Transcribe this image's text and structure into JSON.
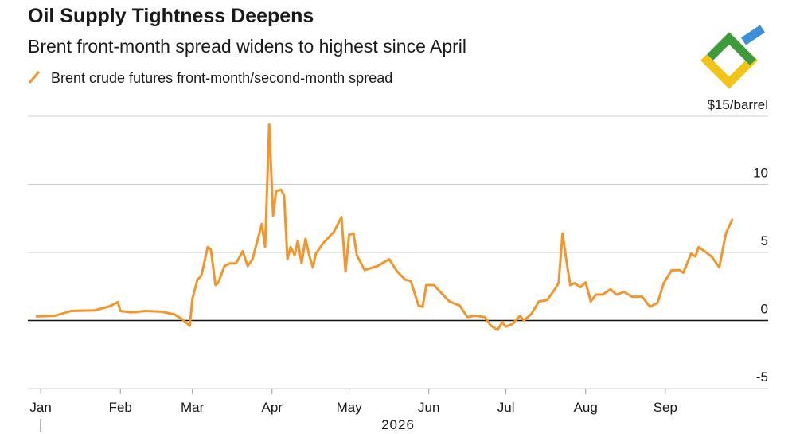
{
  "chart_data": {
    "type": "line",
    "title": "Oil Supply Tightness Deepens",
    "subtitle": "Brent front-month spread widens to highest since April",
    "xlabel": "2026",
    "x": [
      -1.5,
      5.6,
      11.8,
      21,
      27,
      30,
      31,
      35,
      41,
      47,
      52,
      55,
      58,
      59,
      61,
      62.5,
      65,
      66.2,
      68,
      69,
      71.5,
      73.7,
      76,
      78.6,
      80.5,
      82.4,
      86,
      87.3,
      88.9,
      90.4,
      91.6,
      93.5,
      94.7,
      96,
      97.2,
      98.8,
      100,
      101.5,
      103,
      104.6,
      105.9,
      107,
      110,
      114,
      117,
      118.6,
      120,
      121.7,
      123,
      126,
      131,
      135.6,
      138.7,
      141.8,
      144,
      147,
      148.6,
      150,
      153,
      156,
      159,
      163,
      166,
      169,
      172.8,
      175,
      177.7,
      179.6,
      180.8,
      183.6,
      186.4,
      188,
      191,
      193.8,
      197,
      200,
      201.5,
      203,
      204.6,
      206,
      207.7,
      210,
      212,
      214,
      216,
      218.6,
      221.7,
      224,
      227,
      230,
      234,
      237,
      240,
      242.4,
      245.5,
      248.6,
      250,
      253,
      254.7,
      256,
      261,
      264,
      266.6,
      269
    ],
    "series": [
      {
        "name": "Brent crude futures front-month/second-month spread",
        "color": "#f4952b",
        "values": [
          0.3,
          0.35,
          0.7,
          0.75,
          1.05,
          1.35,
          0.7,
          0.6,
          0.7,
          0.65,
          0.45,
          0.1,
          -0.4,
          1.6,
          3.0,
          3.3,
          5.4,
          5.2,
          2.6,
          2.75,
          4.0,
          4.2,
          4.2,
          5.1,
          4.0,
          4.5,
          7.1,
          5.4,
          14.4,
          7.7,
          9.5,
          9.6,
          9.2,
          4.5,
          5.4,
          4.8,
          5.85,
          4.2,
          6.0,
          4.7,
          3.9,
          4.9,
          5.7,
          6.5,
          7.6,
          3.6,
          6.3,
          6.4,
          4.8,
          3.7,
          4.0,
          4.5,
          3.6,
          3.0,
          2.9,
          1.1,
          1.0,
          2.6,
          2.6,
          2.0,
          1.4,
          1.1,
          0.25,
          0.35,
          0.25,
          -0.35,
          -0.7,
          -0.1,
          -0.45,
          -0.25,
          0.35,
          0,
          0.5,
          1.4,
          1.5,
          2.3,
          2.75,
          6.4,
          4.3,
          2.6,
          2.75,
          2.45,
          2.8,
          1.4,
          1.9,
          1.9,
          2.3,
          1.9,
          2.1,
          1.75,
          1.75,
          1.0,
          1.3,
          2.75,
          3.7,
          3.7,
          3.5,
          4.9,
          4.7,
          5.4,
          4.7,
          3.9,
          6.4,
          7.4
        ]
      }
    ],
    "xlim": [
      -5,
      283
    ],
    "xticks": [
      {
        "value": 0,
        "label": "Jan"
      },
      {
        "value": 31,
        "label": "Feb"
      },
      {
        "value": 59,
        "label": "Mar"
      },
      {
        "value": 90,
        "label": "Apr"
      },
      {
        "value": 120,
        "label": "May"
      },
      {
        "value": 151,
        "label": "Jun"
      },
      {
        "value": 181,
        "label": "Jul"
      },
      {
        "value": 212,
        "label": "Aug"
      },
      {
        "value": 243,
        "label": "Sep"
      }
    ],
    "ylim": [
      -5,
      15
    ],
    "yticks": [
      {
        "value": 15,
        "label": "$15/barrel"
      },
      10,
      5,
      0,
      -5
    ],
    "grid": true
  }
}
